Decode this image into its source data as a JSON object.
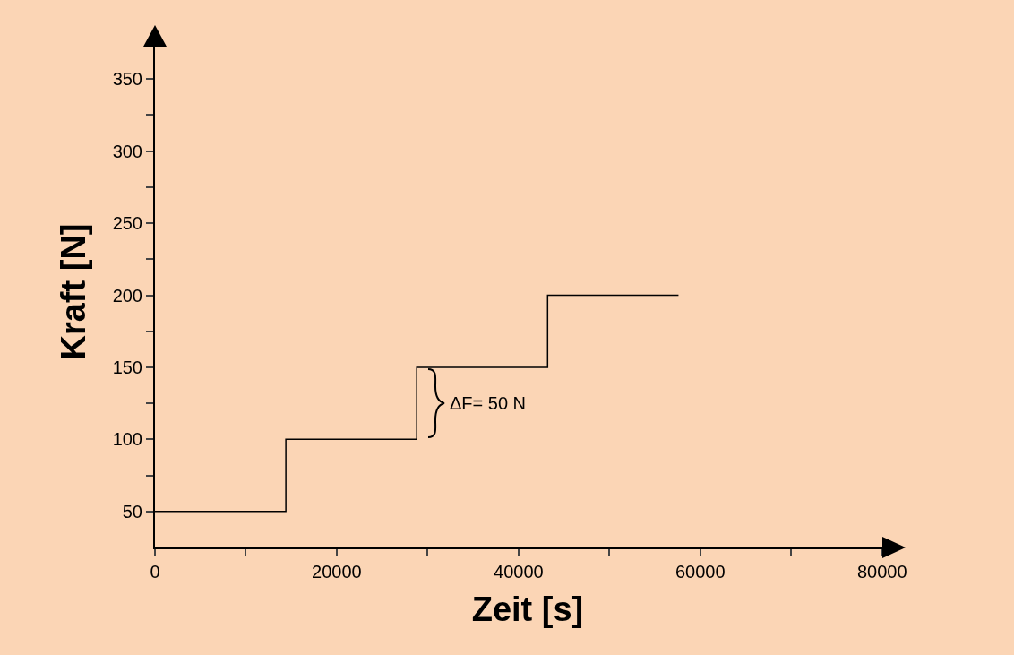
{
  "chart_data": {
    "type": "step",
    "xlabel": "Zeit [s]",
    "ylabel": "Kraft [N]",
    "x": [
      0,
      14400,
      28800,
      43200,
      57600
    ],
    "series": [
      {
        "color": "#000000",
        "values": [
          50,
          100,
          150,
          200,
          200
        ]
      }
    ],
    "xlim": [
      0,
      82000
    ],
    "ylim": [
      25,
      380
    ],
    "xticks": [
      0,
      {
        "value": 10000,
        "label": null
      },
      20000,
      {
        "value": 30000,
        "label": null
      },
      40000,
      {
        "value": 50000,
        "label": null
      },
      60000,
      {
        "value": 70000,
        "label": null
      },
      80000
    ],
    "yticks": [
      50,
      {
        "value": 75,
        "label": null
      },
      100,
      {
        "value": 125,
        "label": null
      },
      150,
      {
        "value": 175,
        "label": null
      },
      200,
      {
        "value": 225,
        "label": null
      },
      250,
      {
        "value": 275,
        "label": null
      },
      300,
      {
        "value": 325,
        "label": null
      },
      350,
      {
        "value": 375,
        "label": null
      }
    ],
    "annotations": [
      "ΔF= 50 N"
    ],
    "grid": false,
    "marker": "none",
    "line_style": "solid"
  }
}
